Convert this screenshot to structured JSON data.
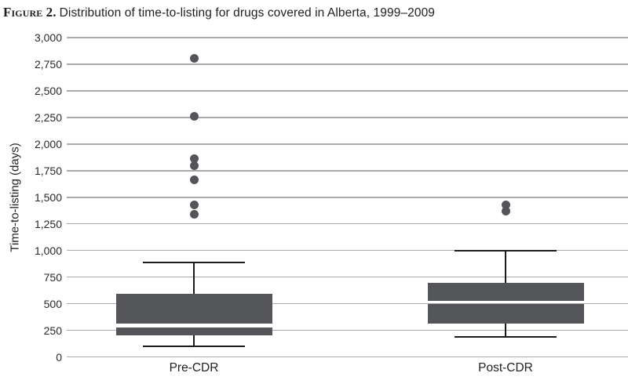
{
  "title": {
    "figure_label": "Figure 2.",
    "text": "Distribution of time-to-listing for drugs covered in Alberta, 1999–2009"
  },
  "chart_data": {
    "type": "boxplot",
    "title": "Distribution of time-to-listing for drugs covered in Alberta, 1999–2009",
    "xlabel": "",
    "ylabel": "Time-to-listing (days)",
    "ylim": [
      0,
      3000
    ],
    "ytick_interval": 250,
    "grid": "horizontal",
    "legend": "none",
    "yticks": [
      {
        "value": 3000,
        "label": "3,000"
      },
      {
        "value": 2750,
        "label": "2,750"
      },
      {
        "value": 2500,
        "label": "2,500"
      },
      {
        "value": 2250,
        "label": "2,250"
      },
      {
        "value": 2000,
        "label": "2,000"
      },
      {
        "value": 1750,
        "label": "1,750"
      },
      {
        "value": 1500,
        "label": "1,500"
      },
      {
        "value": 1250,
        "label": "1,250"
      },
      {
        "value": 1000,
        "label": "1,000"
      },
      {
        "value": 750,
        "label": "750"
      },
      {
        "value": 500,
        "label": "500"
      },
      {
        "value": 250,
        "label": "250"
      },
      {
        "value": 0,
        "label": "0"
      }
    ],
    "categories": [
      "Pre-CDR",
      "Post-CDR"
    ],
    "series": [
      {
        "name": "Pre-CDR",
        "whisker_low": 100,
        "q1": 205,
        "median": 295,
        "q3": 590,
        "whisker_high": 885,
        "outliers": [
          1340,
          1425,
          1665,
          1800,
          1860,
          2260,
          2805
        ]
      },
      {
        "name": "Post-CDR",
        "whisker_low": 190,
        "q1": 310,
        "median": 510,
        "q3": 695,
        "whisker_high": 1000,
        "outliers": [
          1370,
          1430
        ]
      }
    ],
    "colors": {
      "box_fill": "#535558",
      "whisker": "#1b1b1b",
      "gridline": "#a9a9a9",
      "outlier_dot": "#535558",
      "text": "#222222"
    }
  }
}
